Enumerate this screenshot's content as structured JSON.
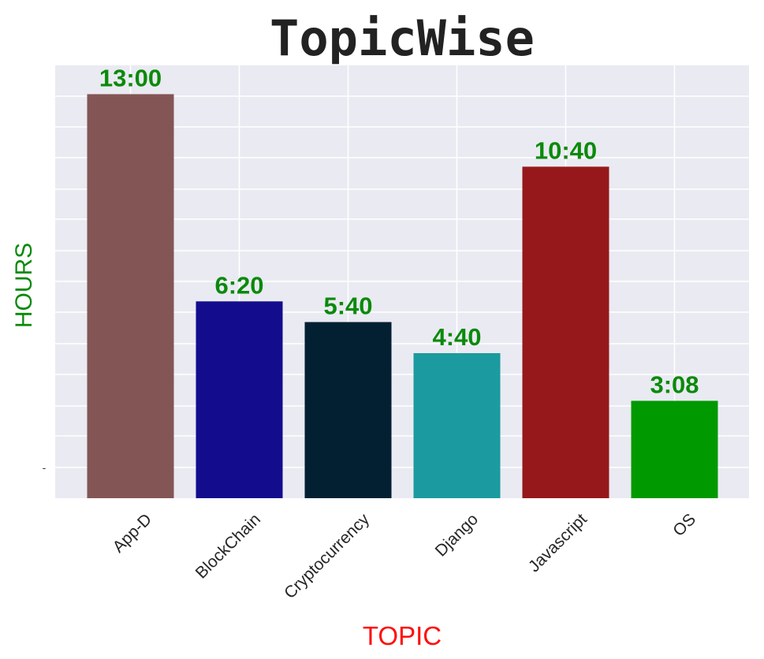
{
  "chart_data": {
    "type": "bar",
    "title": "TopicWise",
    "xlabel": "TOPIC",
    "ylabel": "HOURS",
    "categories": [
      "App-D",
      "BlockChain",
      "Cryptocurrency",
      "Django",
      "Javascript",
      "OS"
    ],
    "values": [
      13.0,
      6.333,
      5.667,
      4.667,
      10.667,
      3.133
    ],
    "value_labels": [
      "13:00",
      "6:20",
      "5:40",
      "4:40",
      "10:40",
      "3:08"
    ],
    "colors": [
      "#845555",
      "#130d8e",
      "#032033",
      "#1b9b9f",
      "#96181a",
      "#009900"
    ],
    "ytick_labels": [
      "-"
    ],
    "ylim": [
      0,
      13.95
    ],
    "grid": true,
    "legend": "none",
    "style": {
      "background": "#eaeaf2",
      "gridline_color": "#ffffff",
      "value_label_color": "#0a8a0a",
      "xlabel_color": "#ff0d0d",
      "ylabel_color": "#0a8a0a",
      "title_color": "#222222"
    }
  }
}
